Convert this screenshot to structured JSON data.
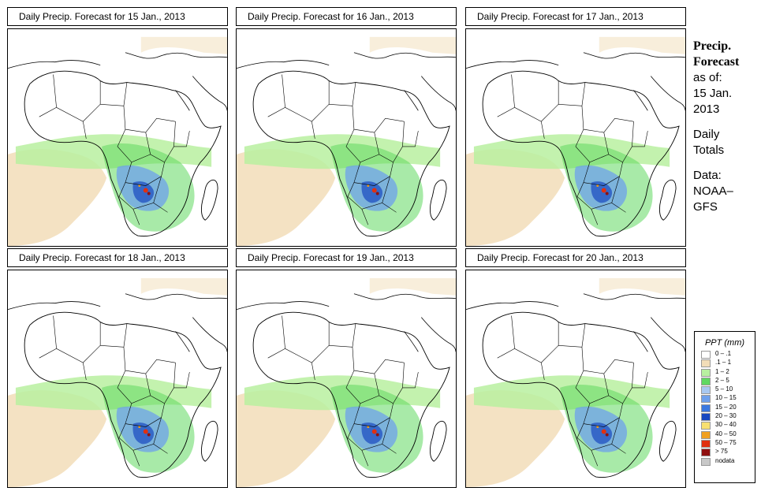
{
  "panels": [
    {
      "title": "Daily Precip. Forecast for  15 Jan., 2013"
    },
    {
      "title": "Daily Precip. Forecast for  16 Jan., 2013"
    },
    {
      "title": "Daily Precip. Forecast for  17 Jan., 2013"
    },
    {
      "title": "Daily Precip. Forecast for  18 Jan., 2013"
    },
    {
      "title": "Daily Precip. Forecast for  19 Jan., 2013"
    },
    {
      "title": "Daily Precip. Forecast for  20 Jan., 2013"
    }
  ],
  "sidebar": {
    "heading1": "Precip.",
    "heading2": "Forecast",
    "asof1": "as of:",
    "asof2": "15 Jan.",
    "asof3": "2013",
    "daily1": "Daily",
    "daily2": "Totals",
    "data1": "Data:",
    "data2": "NOAA–",
    "data3": "GFS"
  },
  "legend": {
    "title": "PPT (mm)",
    "items": [
      {
        "label": "0 – .1",
        "color": "#ffffff"
      },
      {
        "label": ".1 – 1",
        "color": "#f2ddb8"
      },
      {
        "label": "1 – 2",
        "color": "#b8f0a0"
      },
      {
        "label": "2 – 5",
        "color": "#60d860"
      },
      {
        "label": "5 – 10",
        "color": "#a8c8f0"
      },
      {
        "label": "10 – 15",
        "color": "#6ea0ec"
      },
      {
        "label": "15 – 20",
        "color": "#3a78e0"
      },
      {
        "label": "20 – 30",
        "color": "#1848c0"
      },
      {
        "label": "30 – 40",
        "color": "#f8e070"
      },
      {
        "label": "40 – 50",
        "color": "#f0a020"
      },
      {
        "label": "50 – 75",
        "color": "#e03010"
      },
      {
        "label": "> 75",
        "color": "#901010"
      },
      {
        "label": "nodata",
        "color": "#c8c8c8"
      }
    ]
  }
}
